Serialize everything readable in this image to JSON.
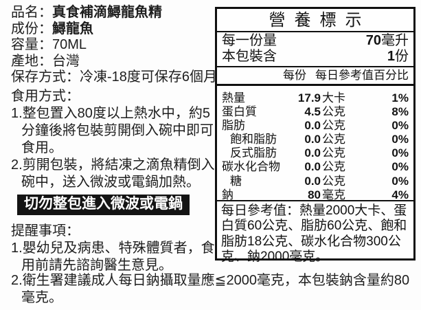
{
  "product": {
    "fields": [
      {
        "label": "品名：",
        "value": "真食補滴鱘龍魚精"
      },
      {
        "label": "成份：",
        "value": "鱘龍魚"
      },
      {
        "label": "容量：",
        "value": "70ML"
      },
      {
        "label": "產地：",
        "value": "台灣"
      },
      {
        "label": "保存方式：",
        "value": "冷凍-18度可保存6個月"
      }
    ],
    "usage_heading": "食用方式：",
    "usage_steps": [
      {
        "num": "1.",
        "text": "整包置入80度以上熱水中，約5分鐘後將包裝剪開倒入碗中即可食用。"
      },
      {
        "num": "2.",
        "text": "剪開包裝，將結凍之滴魚精倒入碗中，送入微波或電鍋加熱。"
      }
    ],
    "warning": "切勿整包進入微波或電鍋",
    "notice_heading": "提醒事項：",
    "notices": [
      {
        "num": "1.",
        "text": "嬰幼兒及病患、特殊體質者，食用前請先諮詢醫生意見。"
      },
      {
        "num": "2.",
        "text": "衛生署建議成人每日鈉攝取量應≦2000毫克，本包裝鈉含量約80毫克。"
      }
    ]
  },
  "nutrition": {
    "title": "營養標示",
    "serving_rows": [
      {
        "label": "每一份量",
        "value": "70",
        "unit": "毫升"
      },
      {
        "label": "本包裝含",
        "value": "1",
        "unit": "份"
      }
    ],
    "col_per_serving": "每份",
    "col_daily_value": "每日參考值百分比",
    "rows": [
      {
        "label": "熱量",
        "value": "17.9",
        "unit": "大卡",
        "dv": "1%"
      },
      {
        "label": "蛋白質",
        "value": "4.5",
        "unit": "公克",
        "dv": "8%"
      },
      {
        "label": "脂肪",
        "value": "0.0",
        "unit": "公克",
        "dv": "0%"
      },
      {
        "label": "飽和脂肪",
        "value": "0.0",
        "unit": "公克",
        "dv": "0%"
      },
      {
        "label": "反式脂肪",
        "value": "0.0",
        "unit": "公克",
        "dv": "0%"
      },
      {
        "label": "碳水化合物",
        "value": "0.0",
        "unit": "公克",
        "dv": "0%"
      },
      {
        "label": "糖",
        "value": "0.0",
        "unit": "公克",
        "dv": "0%"
      },
      {
        "label": "鈉",
        "value": "80",
        "unit": "毫克",
        "dv": "4%"
      }
    ],
    "footnote": "每日參考值：熱量2000大卡、蛋白質60公克、脂肪60公克、飽和脂肪18公克、碳水化合物300公克、鈉2000毫克。"
  },
  "colors": {
    "text": "#1e1e1e",
    "border": "#101010",
    "warning_bg": "#141414",
    "warning_text": "#ffffff",
    "background": "#fdfdfd"
  }
}
